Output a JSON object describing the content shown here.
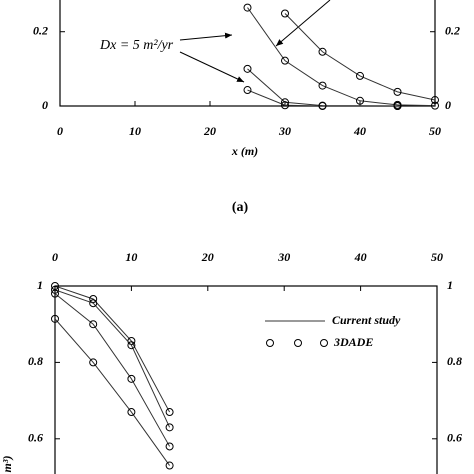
{
  "chart_data": [
    {
      "type": "line",
      "annotation": "Dx = 5  m²/yr",
      "x_label": "x (m)",
      "panel_label": "(a)",
      "xlim": [
        0,
        50
      ],
      "xticks": [
        0,
        10,
        20,
        30,
        40,
        50
      ],
      "ylim": [
        0,
        0.28
      ],
      "yticks": [
        0,
        0.2
      ],
      "series": [
        {
          "x": [
            30,
            35,
            40,
            45,
            50
          ],
          "values": [
            0.249,
            0.146,
            0.081,
            0.038,
            0.016
          ]
        },
        {
          "x": [
            25,
            30,
            35,
            40,
            45,
            50
          ],
          "values": [
            0.265,
            0.122,
            0.055,
            0.014,
            0.003,
            0.001
          ]
        },
        {
          "x": [
            25,
            30,
            35,
            45
          ],
          "values": [
            0.1,
            0.01,
            0.001,
            0
          ]
        },
        {
          "x": [
            25,
            30,
            35,
            45
          ],
          "values": [
            0.043,
            0.002,
            0,
            0
          ]
        }
      ]
    },
    {
      "type": "line",
      "y_label": "m³)",
      "legend": [
        "Current study",
        "3DADE"
      ],
      "xlim": [
        0,
        50
      ],
      "xticks": [
        0,
        10,
        20,
        30,
        40,
        50
      ],
      "ylim": [
        0.5,
        1
      ],
      "yticks": [
        0.6,
        0.8,
        1
      ],
      "series": [
        {
          "x": [
            0,
            5,
            10,
            15
          ],
          "values": [
            1,
            0.966,
            0.856,
            0.67
          ]
        },
        {
          "x": [
            0,
            5,
            10,
            15
          ],
          "values": [
            0.99,
            0.955,
            0.845,
            0.63
          ]
        },
        {
          "x": [
            0,
            5,
            10,
            15
          ],
          "values": [
            0.98,
            0.9,
            0.757,
            0.58
          ]
        },
        {
          "x": [
            0,
            5,
            10,
            15
          ],
          "values": [
            0.914,
            0.8,
            0.67,
            0.53
          ]
        }
      ]
    }
  ]
}
